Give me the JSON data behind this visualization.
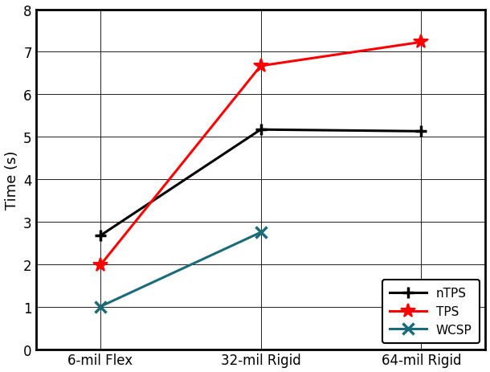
{
  "categories": [
    "6-mil Flex",
    "32-mil Rigid",
    "64-mil Rigid"
  ],
  "series": [
    {
      "label": "nTPS",
      "values": [
        2.67,
        5.17,
        5.13
      ],
      "color": "#000000",
      "marker": "+",
      "linewidth": 2.2,
      "markersize": 10,
      "markeredgewidth": 2.5
    },
    {
      "label": "TPS",
      "values": [
        1.97,
        6.67,
        7.23
      ],
      "color": "#ff0000",
      "marker": "*",
      "linewidth": 2.2,
      "markersize": 13,
      "markeredgewidth": 1.5
    },
    {
      "label": "WCSP",
      "values": [
        1.0,
        2.75,
        null
      ],
      "color": "#1a6b7a",
      "marker": "x",
      "linewidth": 2.2,
      "markersize": 10,
      "markeredgewidth": 2.5
    }
  ],
  "ylabel": "Time (s)",
  "ylim": [
    0,
    8
  ],
  "yticks": [
    0,
    1,
    2,
    3,
    4,
    5,
    6,
    7,
    8
  ],
  "grid_color": "#000000",
  "background_color": "#ffffff",
  "legend_loc": "lower right",
  "legend_fontsize": 11,
  "tick_fontsize": 12,
  "ylabel_fontsize": 13
}
